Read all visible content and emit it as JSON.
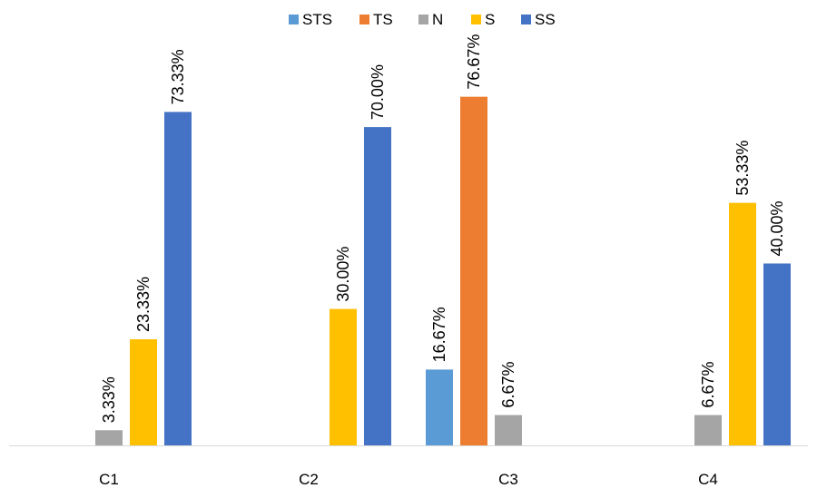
{
  "chart_data": {
    "type": "bar",
    "categories": [
      "C1",
      "C2",
      "C3",
      "C4"
    ],
    "series": [
      {
        "name": "STS",
        "color": "#5B9BD5",
        "values": [
          null,
          null,
          16.67,
          null
        ],
        "labels": [
          "",
          "",
          "16.67%",
          ""
        ]
      },
      {
        "name": "TS",
        "color": "#ED7D31",
        "values": [
          null,
          null,
          76.67,
          null
        ],
        "labels": [
          "",
          "",
          "76.67%",
          ""
        ]
      },
      {
        "name": "N",
        "color": "#A5A5A5",
        "values": [
          3.33,
          null,
          6.67,
          6.67
        ],
        "labels": [
          "3.33%",
          "",
          "6.67%",
          "6.67%"
        ]
      },
      {
        "name": "S",
        "color": "#FFC000",
        "values": [
          23.33,
          30.0,
          null,
          53.33
        ],
        "labels": [
          "23.33%",
          "30.00%",
          "",
          "53.33%"
        ]
      },
      {
        "name": "SS",
        "color": "#4472C4",
        "values": [
          73.33,
          70.0,
          null,
          40.0
        ],
        "labels": [
          "73.33%",
          "70.00%",
          "",
          "40.00%"
        ]
      }
    ],
    "ylim": [
      0,
      78
    ],
    "grid": false,
    "legend": "top-center",
    "axis_color": "#D9D9D9"
  }
}
